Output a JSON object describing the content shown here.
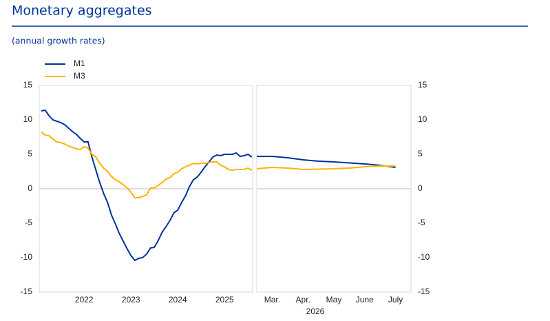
{
  "title": "Monetary aggregates",
  "subtitle": "(annual growth rates)",
  "chart_data": [
    {
      "type": "line",
      "x": [
        2021.583,
        2021.667,
        2021.75,
        2021.833,
        2021.917,
        2022.0,
        2022.083,
        2022.167,
        2022.25,
        2022.333,
        2022.417,
        2022.5,
        2022.583,
        2022.667,
        2022.75,
        2022.833,
        2022.917,
        2023.0,
        2023.083,
        2023.167,
        2023.25,
        2023.333,
        2023.417,
        2023.5,
        2023.583,
        2023.667,
        2023.75,
        2023.833,
        2023.917,
        2024.0,
        2024.083,
        2024.167,
        2024.25,
        2024.333,
        2024.417,
        2024.5,
        2024.583,
        2024.667,
        2024.75,
        2024.833,
        2024.917,
        2025.0,
        2025.083,
        2025.167,
        2025.25,
        2025.333,
        2025.417,
        2025.5,
        2025.583,
        2025.667,
        2025.75,
        2025.833,
        2025.917,
        2026.0,
        2026.083
      ],
      "series": [
        {
          "name": "M1",
          "color": "#003299",
          "values": [
            11.3,
            11.4,
            10.6,
            10.0,
            9.8,
            9.6,
            9.3,
            8.8,
            8.3,
            7.9,
            7.3,
            6.8,
            6.8,
            4.6,
            2.7,
            0.9,
            -0.7,
            -2.0,
            -3.8,
            -5.1,
            -6.5,
            -7.6,
            -8.7,
            -9.7,
            -10.4,
            -10.1,
            -10.0,
            -9.5,
            -8.6,
            -8.5,
            -7.5,
            -6.3,
            -5.5,
            -4.6,
            -3.5,
            -3.1,
            -2.0,
            -1.0,
            0.3,
            1.3,
            1.7,
            2.4,
            3.2,
            3.9,
            4.6,
            4.9,
            4.8,
            5.0,
            5.0,
            5.0,
            5.2,
            4.7,
            4.8,
            5.0,
            4.6
          ]
        },
        {
          "name": "M3",
          "color": "#ffb400",
          "values": [
            8.2,
            7.8,
            7.7,
            7.2,
            6.8,
            6.7,
            6.5,
            6.2,
            6.0,
            5.8,
            5.7,
            6.1,
            5.9,
            5.0,
            4.6,
            3.7,
            3.0,
            2.5,
            1.8,
            1.3,
            1.0,
            0.6,
            0.1,
            -0.5,
            -1.3,
            -1.3,
            -1.1,
            -0.9,
            0.1,
            0.1,
            0.5,
            0.9,
            1.4,
            1.6,
            2.2,
            2.4,
            2.9,
            3.2,
            3.4,
            3.7,
            3.6,
            3.7,
            3.7,
            3.8,
            3.9,
            3.9,
            3.4,
            3.2,
            2.8,
            2.7,
            2.8,
            2.8,
            2.8,
            3.0,
            2.7
          ]
        }
      ],
      "xlim": [
        2021.54,
        2026.1
      ],
      "xticks": [
        {
          "value": 2022.5,
          "label": "2022"
        },
        {
          "value": 2023.5,
          "label": "2023"
        },
        {
          "value": 2024.5,
          "label": "2024"
        },
        {
          "value": 2025.5,
          "label": "2025"
        }
      ],
      "ylim": [
        -15,
        15
      ],
      "yticks": [
        -15,
        -10,
        -5,
        0,
        5,
        10,
        15
      ]
    },
    {
      "type": "line",
      "x": [
        2.5,
        3,
        3.5,
        4,
        4.5,
        5,
        5.5,
        6,
        6.5,
        7
      ],
      "xlabel": "2026",
      "series": [
        {
          "color": "#003299",
          "values": [
            4.7,
            4.7,
            4.5,
            4.2,
            4.0,
            3.9,
            3.75,
            3.6,
            3.4,
            3.1
          ]
        },
        {
          "color": "#ffb400",
          "values": [
            2.9,
            3.1,
            3.0,
            2.8,
            2.85,
            2.9,
            3.0,
            3.2,
            3.3,
            3.3
          ]
        }
      ],
      "xlim": [
        2.5,
        7.5
      ],
      "xticks": [
        {
          "value": 3,
          "label": "Mar."
        },
        {
          "value": 4,
          "label": "Apr."
        },
        {
          "value": 5,
          "label": "May"
        },
        {
          "value": 6,
          "label": "June"
        },
        {
          "value": 7,
          "label": "July"
        }
      ],
      "ylim": [
        -15,
        15
      ],
      "yticks": [
        -15,
        -10,
        -5,
        0,
        5,
        10,
        15
      ]
    }
  ]
}
